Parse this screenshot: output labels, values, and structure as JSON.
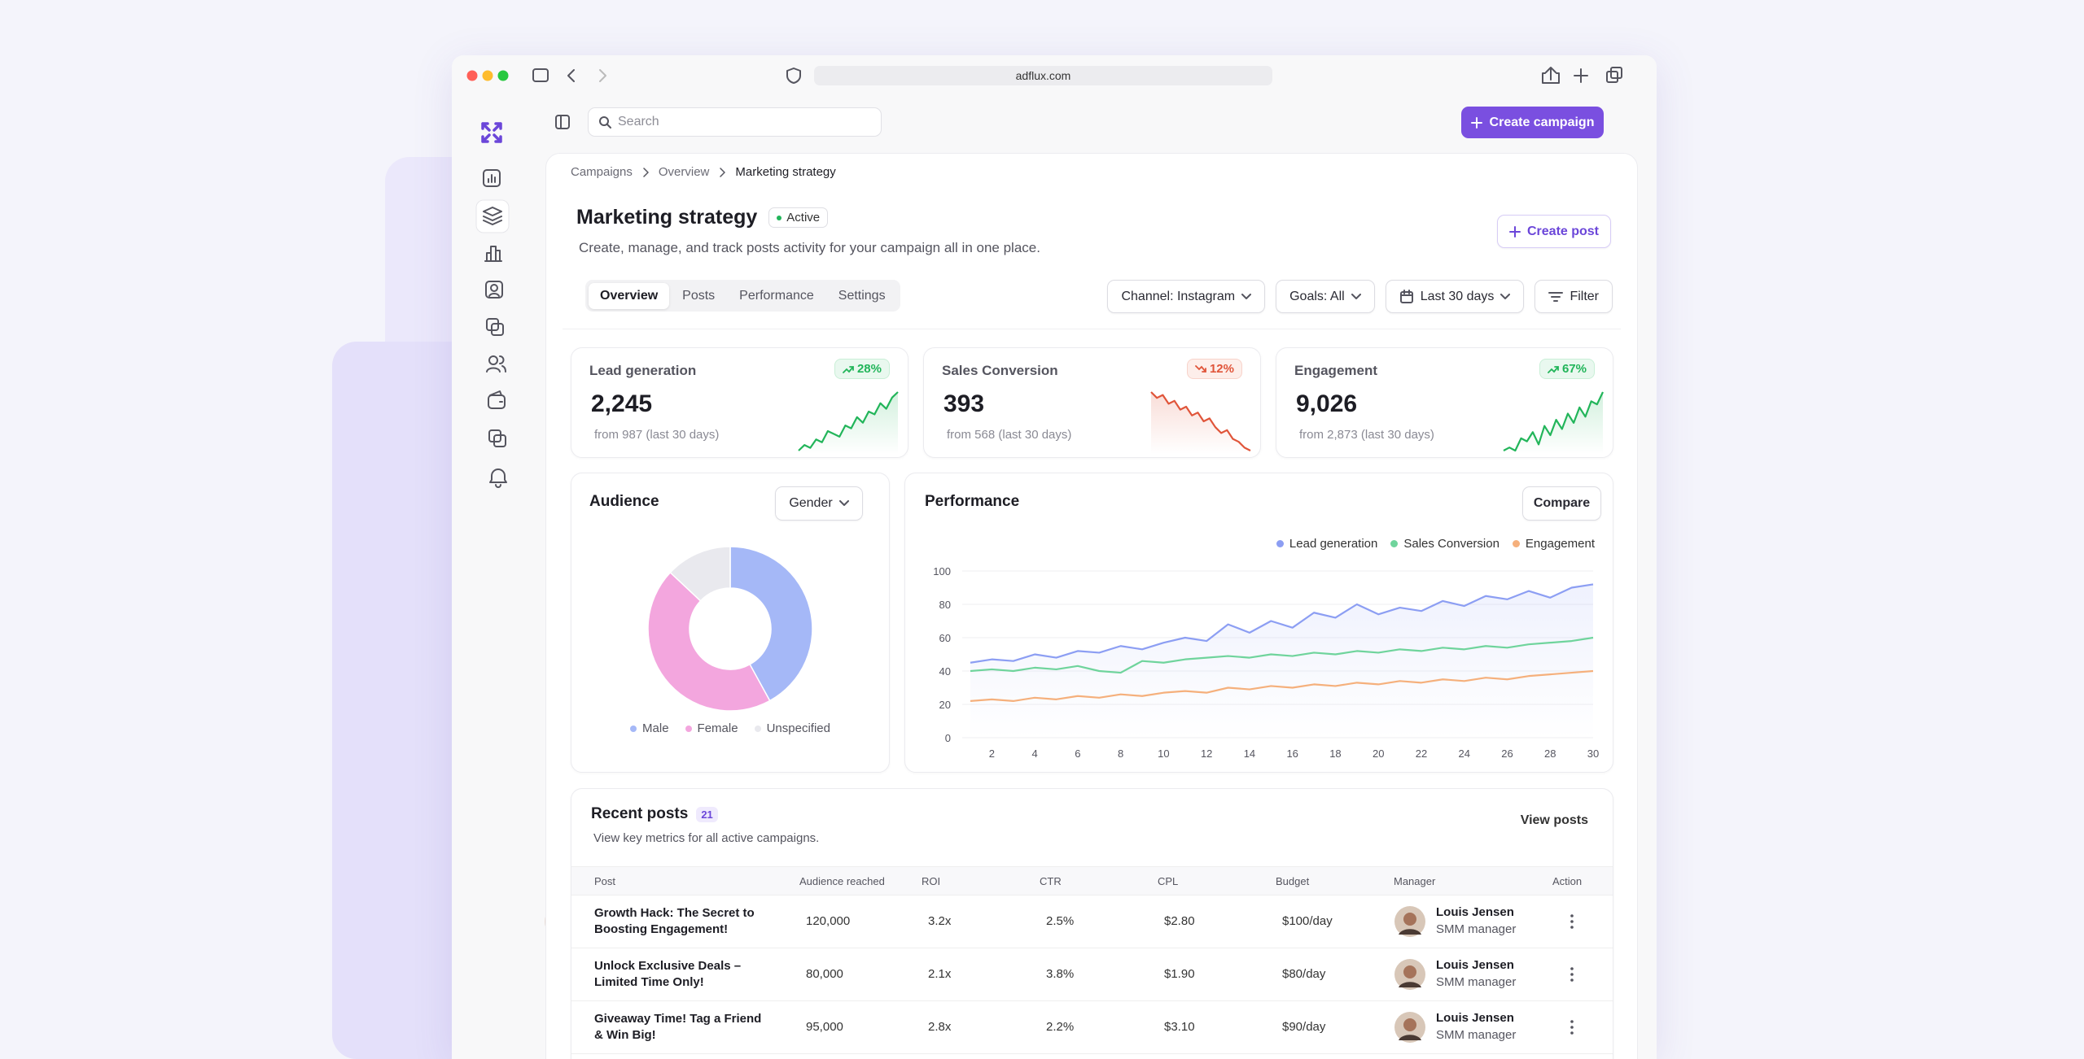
{
  "browser": {
    "url": "adflux.com"
  },
  "search": {
    "placeholder": "Search"
  },
  "create_campaign": "Create campaign",
  "breadcrumbs": [
    "Campaigns",
    "Overview",
    "Marketing strategy"
  ],
  "header": {
    "title": "Marketing strategy",
    "status": "Active",
    "description": "Create, manage, and track posts activity for your campaign all in one place.",
    "create_post": "Create post"
  },
  "tabs": [
    "Overview",
    "Posts",
    "Performance",
    "Settings"
  ],
  "filters": [
    "Channel: Instagram",
    "Goals: All",
    "Last 30 days",
    "Filter"
  ],
  "kpis": [
    {
      "label": "Lead generation",
      "value": "2,245",
      "change": "28%",
      "note": "from 987 (last 30 days)"
    },
    {
      "label": "Sales Conversion",
      "value": "393",
      "change": "12%",
      "note": "from 568 (last 30 days)"
    },
    {
      "label": "Engagement",
      "value": "9,026",
      "change": "67%",
      "note": "from 2,873 (last 30 days)"
    }
  ],
  "audience": {
    "title": "Audience",
    "dropdown": "Gender"
  },
  "performance": {
    "title": "Performance",
    "button": "Compare"
  },
  "recent_posts": {
    "title": "Recent posts",
    "count": "21",
    "subtitle": "View key metrics for all active campaigns.",
    "action": "View posts",
    "table": {
      "headers": [
        "Post",
        "Audience reached",
        "ROI",
        "CTR",
        "CPL",
        "Budget",
        "Manager",
        "Action"
      ],
      "rows": [
        {
          "post": "Growth Hack: The Secret to Boosting Engagement!",
          "audience": "120,000",
          "roi": "3.2x",
          "ctr": "2.5%",
          "cpl": "$2.80",
          "budget": "$100/day",
          "manager": "Louis Jensen",
          "role": "SMM manager"
        },
        {
          "post": "Unlock Exclusive Deals – Limited Time Only!",
          "audience": "80,000",
          "roi": "2.1x",
          "ctr": "3.8%",
          "cpl": "$1.90",
          "budget": "$80/day",
          "manager": "Louis Jensen",
          "role": "SMM manager"
        },
        {
          "post": "Giveaway Time! Tag a Friend & Win Big!",
          "audience": "95,000",
          "roi": "2.8x",
          "ctr": "2.2%",
          "cpl": "$3.10",
          "budget": "$90/day",
          "manager": "Louis Jensen",
          "role": "SMM manager"
        }
      ]
    }
  },
  "chart_data": [
    {
      "type": "line",
      "color": "#22b55a",
      "values": [
        10,
        12,
        11,
        14,
        13,
        17,
        16,
        15,
        19,
        18,
        22,
        20,
        24,
        23,
        27,
        25,
        29,
        31
      ]
    },
    {
      "type": "line",
      "color": "#e0553a",
      "values": [
        30,
        28,
        29,
        26,
        27,
        24,
        25,
        22,
        23,
        20,
        21,
        18,
        16,
        17,
        14,
        13,
        11,
        10
      ]
    },
    {
      "type": "line",
      "color": "#22b55a",
      "values": [
        10,
        11,
        10,
        14,
        13,
        16,
        12,
        18,
        15,
        20,
        17,
        22,
        19,
        24,
        21,
        26,
        25,
        29
      ]
    },
    {
      "type": "pie",
      "categories": [
        "Male",
        "Female",
        "Unspecified"
      ],
      "values": [
        42,
        45,
        13
      ],
      "colors": [
        "#a5b8f7",
        "#f3a6de",
        "#e9e9ee"
      ]
    },
    {
      "type": "line",
      "x": [
        1,
        2,
        3,
        4,
        5,
        6,
        7,
        8,
        9,
        10,
        11,
        12,
        13,
        14,
        15,
        16,
        17,
        18,
        19,
        20,
        21,
        22,
        23,
        24,
        25,
        26,
        27,
        28,
        29,
        30
      ],
      "xlim": [
        1,
        30
      ],
      "xticks": [
        2,
        4,
        6,
        8,
        10,
        12,
        14,
        16,
        18,
        20,
        22,
        24,
        26,
        28,
        30
      ],
      "ylim": [
        0,
        100
      ],
      "yticks": [
        0,
        20,
        40,
        60,
        80,
        100
      ],
      "grid": true,
      "series": [
        {
          "name": "Lead generation",
          "color": "#8c9ef3",
          "values": [
            45,
            47,
            46,
            50,
            48,
            52,
            51,
            55,
            53,
            57,
            60,
            58,
            68,
            63,
            70,
            66,
            75,
            72,
            80,
            74,
            78,
            76,
            82,
            79,
            85,
            83,
            88,
            84,
            90,
            92
          ]
        },
        {
          "name": "Sales Conversion",
          "color": "#6fd49c",
          "values": [
            40,
            41,
            40,
            42,
            41,
            43,
            40,
            39,
            46,
            45,
            47,
            48,
            49,
            48,
            50,
            49,
            51,
            50,
            52,
            51,
            53,
            52,
            54,
            53,
            55,
            54,
            56,
            57,
            58,
            60
          ]
        },
        {
          "name": "Engagement",
          "color": "#f5b07c",
          "values": [
            22,
            23,
            22,
            24,
            23,
            25,
            24,
            26,
            25,
            27,
            28,
            27,
            30,
            29,
            31,
            30,
            32,
            31,
            33,
            32,
            34,
            33,
            35,
            34,
            36,
            35,
            37,
            38,
            39,
            40
          ]
        }
      ]
    }
  ]
}
